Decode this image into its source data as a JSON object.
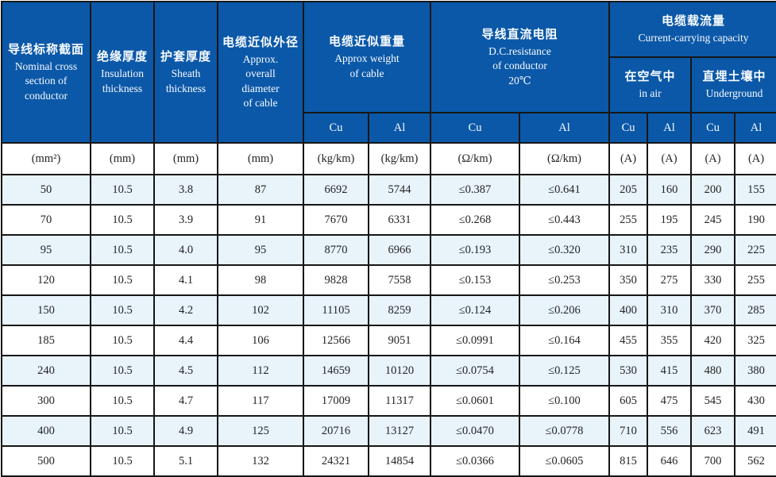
{
  "colors": {
    "header_blue": "#0b58a8",
    "stripe_blue": "#e8f3fa",
    "border": "#161616"
  },
  "header": {
    "nominal": {
      "zh": "导线标称截面",
      "en": "Nominal cross\nsection of\nconductor"
    },
    "insulation": {
      "zh": "绝缘厚度",
      "en": "Insulation\nthickness"
    },
    "sheath": {
      "zh": "护套厚度",
      "en": "Sheath\nthickness"
    },
    "diameter": {
      "zh": "电缆近似外径",
      "en": "Approx.\noverall\ndiameter\nof cable"
    },
    "weight": {
      "zh": "电缆近似重量",
      "en": "Approx weight\nof cable"
    },
    "dc_resistance": {
      "zh": "导线直流电阻",
      "en": "D.C.resistance\nof conductor\n20℃"
    },
    "capacity": {
      "zh": "电缆载流量",
      "en": "Current-carrying capacity"
    },
    "in_air": {
      "zh": "在空气中",
      "en": "in air"
    },
    "underground": {
      "zh": "直埋土壤中",
      "en": "Underground"
    }
  },
  "subheaders": [
    "Cu",
    "Al",
    "Cu",
    "Al",
    "Cu",
    "Al",
    "Cu",
    "Al"
  ],
  "units": [
    "(mm²)",
    "(mm)",
    "(mm)",
    "(mm)",
    "(kg/km)",
    "(kg/km)",
    "(Ω/km)",
    "(Ω/km)",
    "(A)",
    "(A)",
    "(A)",
    "(A)"
  ],
  "rows": [
    [
      "50",
      "10.5",
      "3.8",
      "87",
      "6692",
      "5744",
      "≤0.387",
      "≤0.641",
      "205",
      "160",
      "200",
      "155"
    ],
    [
      "70",
      "10.5",
      "3.9",
      "91",
      "7670",
      "6331",
      "≤0.268",
      "≤0.443",
      "255",
      "195",
      "245",
      "190"
    ],
    [
      "95",
      "10.5",
      "4.0",
      "95",
      "8770",
      "6966",
      "≤0.193",
      "≤0.320",
      "310",
      "235",
      "290",
      "225"
    ],
    [
      "120",
      "10.5",
      "4.1",
      "98",
      "9828",
      "7558",
      "≤0.153",
      "≤0.253",
      "350",
      "275",
      "330",
      "255"
    ],
    [
      "150",
      "10.5",
      "4.2",
      "102",
      "11105",
      "8259",
      "≤0.124",
      "≤0.206",
      "400",
      "310",
      "370",
      "285"
    ],
    [
      "185",
      "10.5",
      "4.4",
      "106",
      "12566",
      "9051",
      "≤0.0991",
      "≤0.164",
      "455",
      "355",
      "420",
      "325"
    ],
    [
      "240",
      "10.5",
      "4.5",
      "112",
      "14659",
      "10120",
      "≤0.0754",
      "≤0.125",
      "530",
      "415",
      "480",
      "380"
    ],
    [
      "300",
      "10.5",
      "4.7",
      "117",
      "17009",
      "11317",
      "≤0.0601",
      "≤0.100",
      "605",
      "475",
      "545",
      "430"
    ],
    [
      "400",
      "10.5",
      "4.9",
      "125",
      "20716",
      "13127",
      "≤0.0470",
      "≤0.0778",
      "710",
      "556",
      "623",
      "491"
    ],
    [
      "500",
      "10.5",
      "5.1",
      "132",
      "24321",
      "14854",
      "≤0.0366",
      "≤0.0605",
      "815",
      "646",
      "700",
      "562"
    ]
  ]
}
